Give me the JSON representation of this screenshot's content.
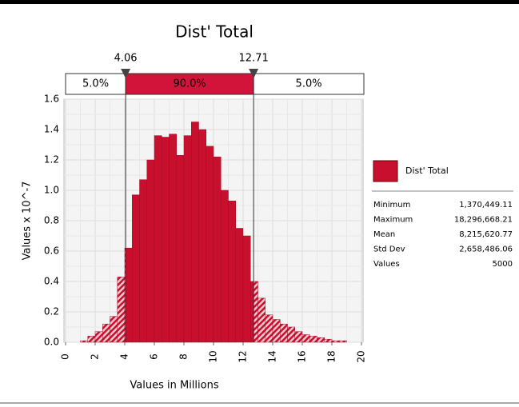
{
  "chart_data": {
    "type": "histogram",
    "title": "Dist' Total",
    "x_label": "Values in Millions",
    "y_label": "Values x 10^-7",
    "bins": [
      1.0,
      1.5,
      2.0,
      2.5,
      3.0,
      3.5,
      4.0,
      4.5,
      5.0,
      5.5,
      6.0,
      6.5,
      7.0,
      7.5,
      8.0,
      8.5,
      9.0,
      9.5,
      10.0,
      10.5,
      11.0,
      11.5,
      12.0,
      12.5,
      13.0,
      13.5,
      14.0,
      14.5,
      15.0,
      15.5,
      16.0,
      16.5,
      17.0,
      17.5,
      18.0,
      18.5,
      19.0
    ],
    "series": [
      {
        "name": "Dist' Total",
        "color": "#c8102e",
        "values": [
          0.01,
          0.04,
          0.07,
          0.12,
          0.17,
          0.43,
          0.62,
          0.97,
          1.07,
          1.2,
          1.36,
          1.35,
          1.37,
          1.23,
          1.36,
          1.45,
          1.4,
          1.29,
          1.22,
          1.0,
          0.93,
          0.75,
          0.7,
          0.4,
          0.29,
          0.18,
          0.15,
          0.12,
          0.1,
          0.07,
          0.05,
          0.04,
          0.03,
          0.02,
          0.01,
          0.01
        ]
      }
    ],
    "xlim": [
      0,
      20
    ],
    "xticks": [
      0,
      2,
      4,
      6,
      8,
      10,
      12,
      14,
      16,
      18,
      20
    ],
    "ylim": [
      0,
      1.6
    ],
    "yticks": [
      {
        "value": 0,
        "label": "0.0"
      },
      0.2,
      0.4,
      0.6,
      0.8,
      {
        "value": 1,
        "label": "1.0"
      },
      1.2,
      1.4,
      1.6
    ],
    "grid": true,
    "markers": [
      4.06,
      12.71
    ],
    "bands": {
      "values": [
        5,
        90,
        5
      ],
      "value_labels": [
        "5.0%",
        "90.0%",
        "5.0%"
      ]
    },
    "stats": [
      {
        "name": "Minimum",
        "value": 1370449.11,
        "label": "1,370,449.11"
      },
      {
        "name": "Maximum",
        "value": 18296668.21,
        "label": "18,296,668.21"
      },
      {
        "name": "Mean",
        "value": 8215620.77,
        "label": "8,215,620.77"
      },
      {
        "name": "Std Dev",
        "value": 2658486.06,
        "label": "2,658,486.06"
      },
      {
        "name": "Values",
        "value": 5000
      }
    ]
  }
}
